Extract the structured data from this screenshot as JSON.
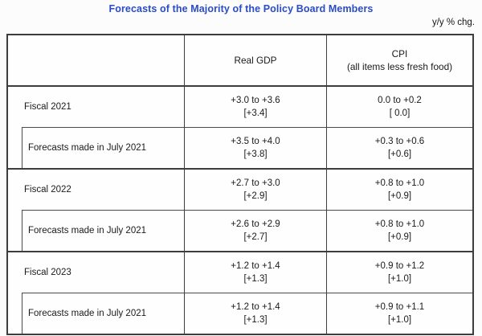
{
  "title": "Forecasts of the Majority of the Policy Board Members",
  "unit_label": "y/y % chg.",
  "colors": {
    "title_blue": "#2a4cc4",
    "border": "#3d3d3d",
    "text": "#1a1a1a",
    "background": "#fcfcfc"
  },
  "table": {
    "header": {
      "gdp": "Real GDP",
      "cpi_line1": "CPI",
      "cpi_line2": "(all items less fresh food)"
    },
    "groups": [
      {
        "fiscal_label": "Fiscal 2021",
        "fiscal_gdp_range": "+3.0 to +3.6",
        "fiscal_gdp_point": "[+3.4]",
        "fiscal_cpi_range": "0.0 to +0.2",
        "fiscal_cpi_point": "[ 0.0]",
        "july_label": "Forecasts made in July 2021",
        "july_gdp_range": "+3.5 to +4.0",
        "july_gdp_point": "[+3.8]",
        "july_cpi_range": "+0.3 to +0.6",
        "july_cpi_point": "[+0.6]"
      },
      {
        "fiscal_label": "Fiscal 2022",
        "fiscal_gdp_range": "+2.7 to +3.0",
        "fiscal_gdp_point": "[+2.9]",
        "fiscal_cpi_range": "+0.8 to +1.0",
        "fiscal_cpi_point": "[+0.9]",
        "july_label": "Forecasts made in July 2021",
        "july_gdp_range": "+2.6 to +2.9",
        "july_gdp_point": "[+2.7]",
        "july_cpi_range": "+0.8 to +1.0",
        "july_cpi_point": "[+0.9]"
      },
      {
        "fiscal_label": "Fiscal 2023",
        "fiscal_gdp_range": "+1.2 to +1.4",
        "fiscal_gdp_point": "[+1.3]",
        "fiscal_cpi_range": "+0.9 to +1.2",
        "fiscal_cpi_point": "[+1.0]",
        "july_label": "Forecasts made in July 2021",
        "july_gdp_range": "+1.2 to +1.4",
        "july_gdp_point": "[+1.3]",
        "july_cpi_range": "+0.9 to +1.1",
        "july_cpi_point": "[+1.0]"
      }
    ]
  }
}
